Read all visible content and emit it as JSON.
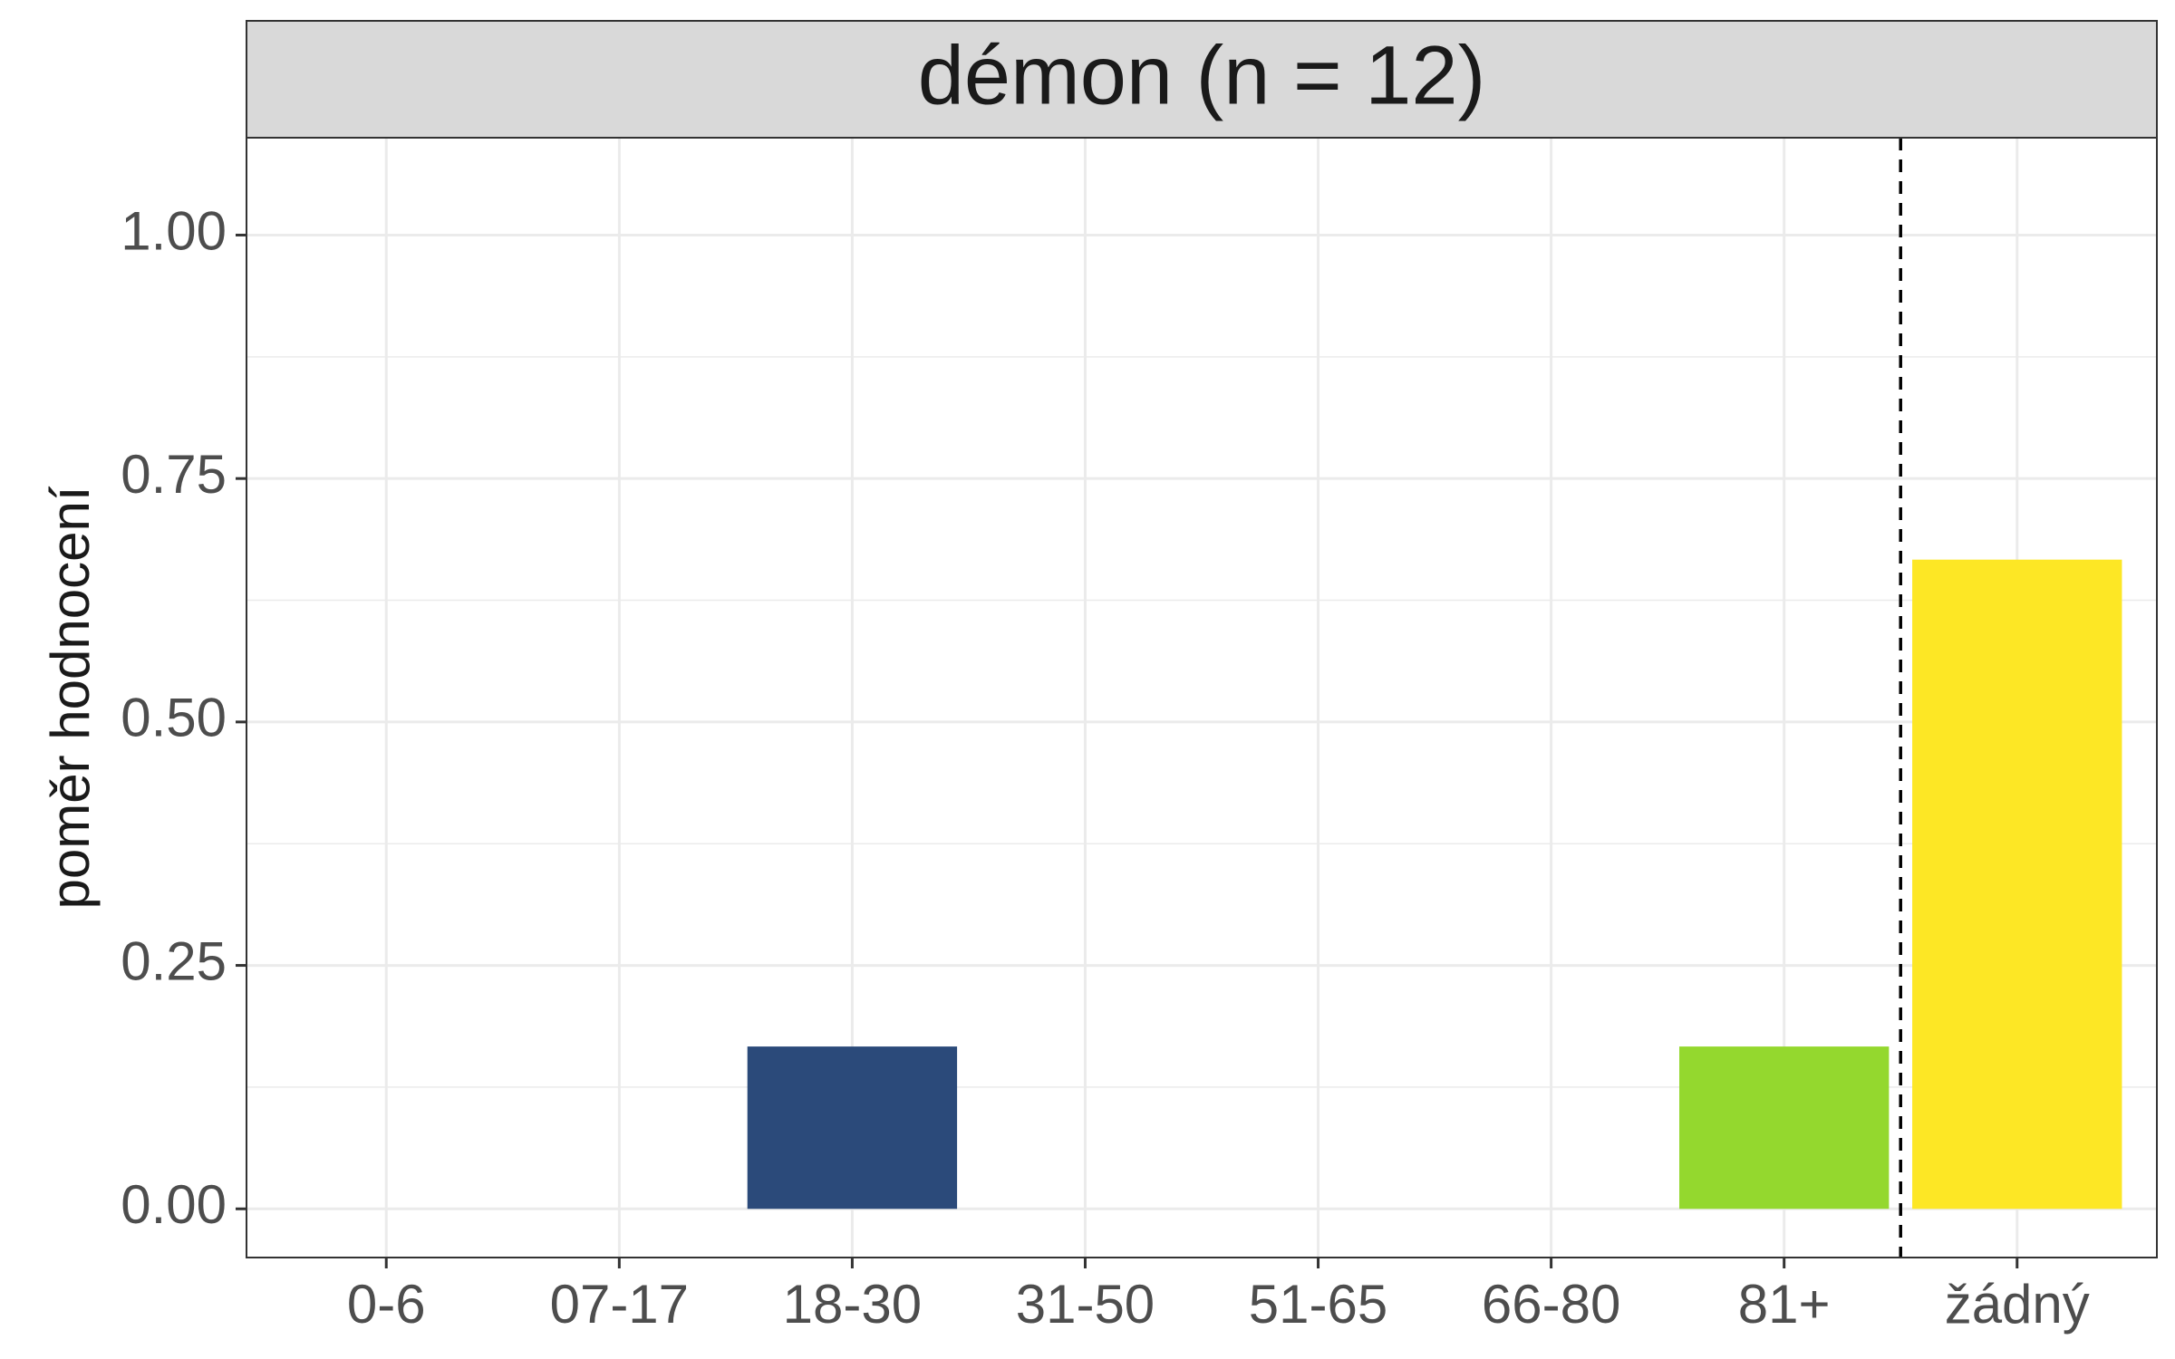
{
  "chart_data": {
    "type": "bar",
    "facet_title": "démon (n = 12)",
    "ylabel": "poměr hodnocení",
    "xlabel": "",
    "categories": [
      "0-6",
      "07-17",
      "18-30",
      "31-50",
      "51-65",
      "66-80",
      "81+",
      "žádný"
    ],
    "values": [
      0,
      0,
      0.1667,
      0,
      0,
      0,
      0.1667,
      0.6667
    ],
    "colors": [
      "#440154",
      "#46337e",
      "#2b4a7a",
      "#277f8e",
      "#1fa187",
      "#4ac16d",
      "#94d82e",
      "#fde725"
    ],
    "ylim": [
      -0.05,
      1.1
    ],
    "yticks": [
      0,
      0.25,
      0.5,
      0.75,
      1
    ],
    "ytick_labels": [
      "0.00",
      "0.25",
      "0.50",
      "0.75",
      "1.00"
    ],
    "reference_line": {
      "between": [
        "81+",
        "žádný"
      ],
      "style": "dashed"
    },
    "grid": true,
    "legend": "none"
  }
}
